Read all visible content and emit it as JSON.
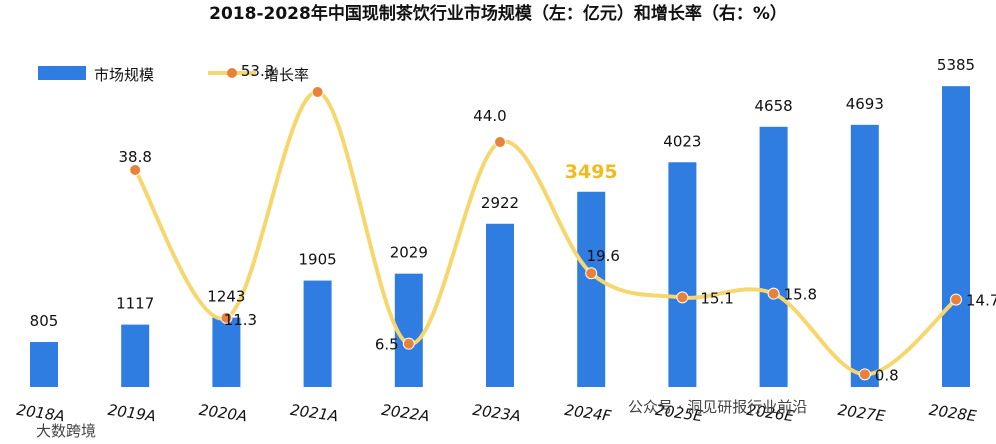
{
  "chart_data": {
    "type": "bar+line",
    "title": "2018-2028年中国现制茶饮行业市场规模（左：亿元）和增长率（右：%）",
    "categories": [
      "2018A",
      "2019A",
      "2020A",
      "2021A",
      "2022A",
      "2023A",
      "2024F",
      "2025E",
      "2026E",
      "2027E",
      "2028E"
    ],
    "series": [
      {
        "name": "市场规模",
        "type": "bar",
        "color": "#2f7de1",
        "values": [
          805,
          1117,
          1243,
          1905,
          2029,
          2922,
          3495,
          4023,
          4658,
          4693,
          5385
        ],
        "highlight_index": 6,
        "highlight_color": "#f2bb1d"
      },
      {
        "name": "增长率",
        "type": "line",
        "color": "#f5d76e",
        "marker_color": "#e8823a",
        "values": [
          null,
          38.8,
          11.3,
          53.3,
          6.5,
          44.0,
          19.6,
          15.1,
          15.8,
          0.8,
          14.7
        ]
      }
    ],
    "ylim_left": [
      0,
      5800
    ],
    "ylim_right": [
      -1,
      60
    ],
    "legend_position": "top-left",
    "grid": false
  },
  "watermark": {
    "source": "公众号 · 洞见研报行业前沿",
    "corner": "大数跨境"
  }
}
